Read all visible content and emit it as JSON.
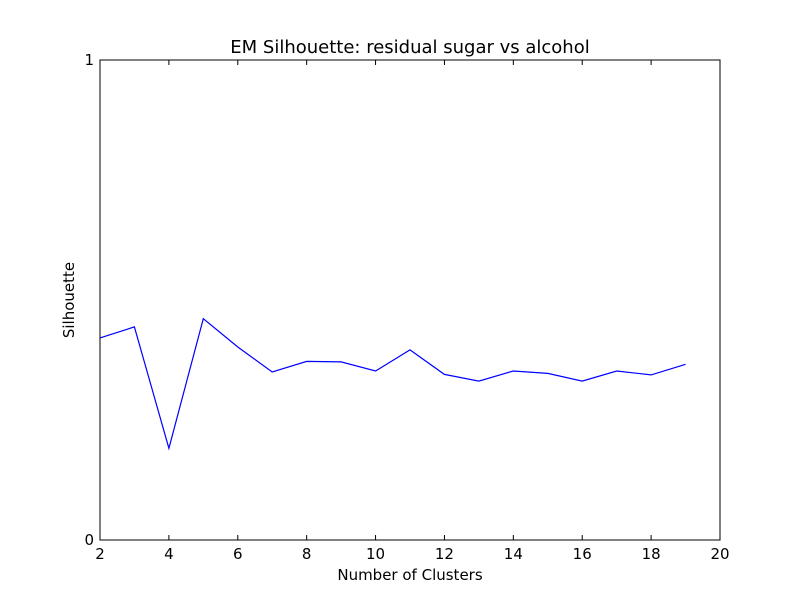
{
  "chart_data": {
    "type": "line",
    "title": "EM Silhouette: residual sugar vs alcohol",
    "xlabel": "Number of Clusters",
    "ylabel": "Silhouette",
    "xlim": [
      2,
      20
    ],
    "ylim": [
      0,
      1
    ],
    "xticks": [
      2,
      4,
      6,
      8,
      10,
      12,
      14,
      16,
      18,
      20
    ],
    "yticks": [
      0,
      1
    ],
    "grid": false,
    "series": [
      {
        "color": "#0000ff",
        "x": [
          2,
          3,
          4,
          5,
          6,
          7,
          8,
          9,
          10,
          11,
          12,
          13,
          14,
          15,
          16,
          17,
          18,
          19
        ],
        "y": [
          0.421,
          0.444,
          0.191,
          0.461,
          0.402,
          0.35,
          0.372,
          0.371,
          0.352,
          0.396,
          0.345,
          0.331,
          0.352,
          0.347,
          0.331,
          0.352,
          0.344,
          0.366
        ]
      }
    ]
  }
}
